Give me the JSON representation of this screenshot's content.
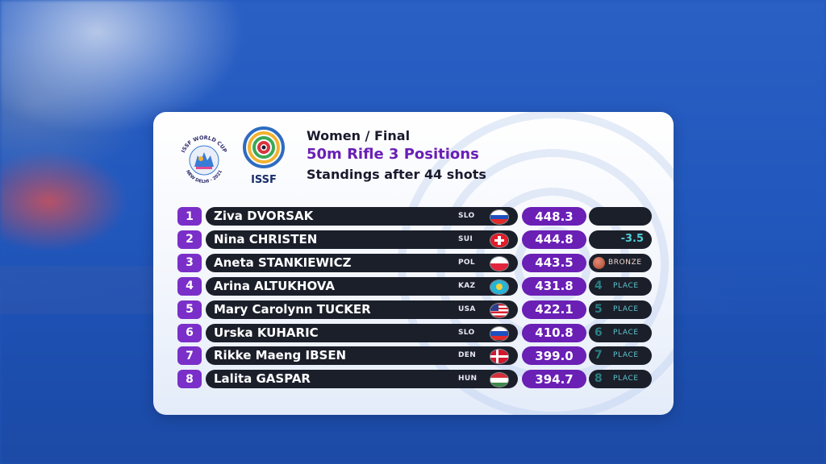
{
  "header": {
    "subtitle": "Women / Final",
    "event": "50m Rifle 3 Positions",
    "standings": "Standings after 44 shots",
    "issf_label": "ISSF",
    "worldcup_top": "ISSF WORLD CUP",
    "worldcup_bottom": "NEW DELHI · 2021"
  },
  "colors": {
    "accent": "#6a1fb5",
    "rank_bg": "#7b2fc9",
    "bar_dark": "#1b1f2a",
    "diff_text": "#4fd0d8",
    "bronze": "#b5543c"
  },
  "rows": [
    {
      "rank": "1",
      "name": "Ziva DVORSAK",
      "nat": "SLO",
      "flag": "slovenia",
      "score": "448.3",
      "status_type": "empty",
      "status": ""
    },
    {
      "rank": "2",
      "name": "Nina CHRISTEN",
      "nat": "SUI",
      "flag": "switzerland",
      "score": "444.8",
      "status_type": "diff",
      "status": "-3.5"
    },
    {
      "rank": "3",
      "name": "Aneta STANKIEWICZ",
      "nat": "POL",
      "flag": "poland",
      "score": "443.5",
      "status_type": "medal",
      "status": "BRONZE"
    },
    {
      "rank": "4",
      "name": "Arina ALTUKHOVA",
      "nat": "KAZ",
      "flag": "kazakhstan",
      "score": "431.8",
      "status_type": "place",
      "place_num": "4",
      "status": "PLACE"
    },
    {
      "rank": "5",
      "name": "Mary Carolynn TUCKER",
      "nat": "USA",
      "flag": "usa",
      "score": "422.1",
      "status_type": "place",
      "place_num": "5",
      "status": "PLACE"
    },
    {
      "rank": "6",
      "name": "Urska KUHARIC",
      "nat": "SLO",
      "flag": "slovenia",
      "score": "410.8",
      "status_type": "place",
      "place_num": "6",
      "status": "PLACE"
    },
    {
      "rank": "7",
      "name": "Rikke Maeng IBSEN",
      "nat": "DEN",
      "flag": "denmark",
      "score": "399.0",
      "status_type": "place",
      "place_num": "7",
      "status": "PLACE"
    },
    {
      "rank": "8",
      "name": "Lalita GASPAR",
      "nat": "HUN",
      "flag": "hungary",
      "score": "394.7",
      "status_type": "place",
      "place_num": "8",
      "status": "PLACE"
    }
  ]
}
